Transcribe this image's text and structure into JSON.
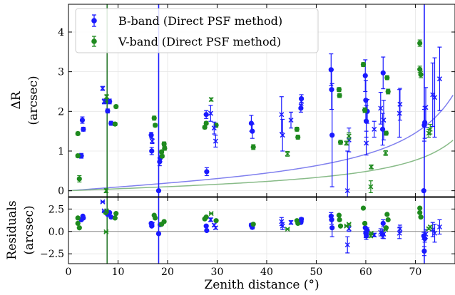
{
  "chart_data": {
    "type": "scatter",
    "xlabel": "Zenith distance (°)",
    "xlim": [
      0,
      78
    ],
    "xticks": [
      0,
      10,
      20,
      30,
      40,
      50,
      60,
      70
    ],
    "panels": [
      {
        "id": "top",
        "ylabel_lines": [
          "ΔR",
          "(arcsec)"
        ],
        "ylim": [
          -0.15,
          4.7
        ],
        "yticks": [
          0,
          1,
          2,
          3,
          4
        ],
        "grid": true,
        "legend_placement": "top-left"
      },
      {
        "id": "bottom",
        "ylabel_lines": [
          "Residuals",
          "(arcsec)"
        ],
        "ylim": [
          -3.6,
          3.8
        ],
        "yticks": [
          -2.5,
          0.0,
          2.5
        ],
        "ytick_labels": [
          "−2.5",
          "0.0",
          "2.5"
        ],
        "grid": true,
        "zero_line": true
      }
    ],
    "vlines": [
      {
        "x": 7.8,
        "color": "#2e7d32"
      },
      {
        "x": 18.2,
        "color": "#1a1aff"
      },
      {
        "x": 71.8,
        "color": "#1a1aff"
      }
    ],
    "curves": [
      {
        "color": "#8080ee",
        "k": 0.53
      },
      {
        "color": "#88bb88",
        "k": 0.28
      }
    ],
    "series": [
      {
        "name": "B-band (Direct PSF method)",
        "color": "#1a1aff",
        "marker": "circle",
        "points": [
          [
            2.6,
            0.88,
            0.06
          ],
          [
            2.8,
            1.78,
            0.08
          ],
          [
            3.0,
            1.55,
            0.05
          ],
          [
            7.9,
            2.01,
            0.05
          ],
          [
            8.3,
            2.25,
            0.06
          ],
          [
            8.6,
            1.7,
            0.05
          ],
          [
            16.7,
            1.4,
            0.07
          ],
          [
            16.8,
            1.0,
            0.09
          ],
          [
            18.2,
            0.0,
            0.0
          ],
          [
            18.4,
            0.73,
            0.1
          ],
          [
            18.5,
            0.82,
            0.08
          ],
          [
            27.8,
            1.92,
            0.1
          ],
          [
            27.9,
            0.48,
            0.1
          ],
          [
            36.9,
            1.7,
            0.2
          ],
          [
            37.1,
            1.5,
            0.18
          ],
          [
            46.9,
            2.08,
            0.1
          ],
          [
            47.0,
            2.32,
            0.1
          ],
          [
            53.0,
            3.05,
            0.4
          ],
          [
            53.1,
            2.55,
            0.5
          ],
          [
            53.2,
            1.4,
            1.3
          ],
          [
            59.9,
            2.9,
            0.4
          ],
          [
            60.0,
            2.28,
            0.5
          ],
          [
            60.1,
            1.75,
            0.4
          ],
          [
            60.3,
            2.0,
            0.3
          ],
          [
            63.4,
            1.55,
            0.4
          ],
          [
            63.5,
            2.97,
            0.4
          ],
          [
            71.7,
            0.0,
            0.0
          ],
          [
            71.8,
            1.65,
            0.4
          ],
          [
            71.9,
            1.72,
            0.4
          ]
        ]
      },
      {
        "name": "V-band (Direct PSF method)",
        "color": "#1e8a1e",
        "marker": "circle",
        "points": [
          [
            1.9,
            1.44,
            0.04
          ],
          [
            1.9,
            0.88,
            0.04
          ],
          [
            2.2,
            0.3,
            0.08
          ],
          [
            7.5,
            2.25,
            0.05
          ],
          [
            9.6,
            2.12,
            0.04
          ],
          [
            9.4,
            1.68,
            0.04
          ],
          [
            17.3,
            1.83,
            0.05
          ],
          [
            17.5,
            1.65,
            0.04
          ],
          [
            18.8,
            0.98,
            0.04
          ],
          [
            19.3,
            1.18,
            0.05
          ],
          [
            19.4,
            1.07,
            0.05
          ],
          [
            18.9,
            0.87,
            0.04
          ],
          [
            27.5,
            1.6,
            0.04
          ],
          [
            27.8,
            1.7,
            0.04
          ],
          [
            29.8,
            1.65,
            0.05
          ],
          [
            37.3,
            1.1,
            0.06
          ],
          [
            46.1,
            1.55,
            0.05
          ],
          [
            46.3,
            1.35,
            0.05
          ],
          [
            54.6,
            2.55,
            0.05
          ],
          [
            54.7,
            2.4,
            0.05
          ],
          [
            54.9,
            1.22,
            0.05
          ],
          [
            59.5,
            3.18,
            0.05
          ],
          [
            59.8,
            2.03,
            0.06
          ],
          [
            64.3,
            2.85,
            0.05
          ],
          [
            64.5,
            2.5,
            0.06
          ],
          [
            64.1,
            1.45,
            0.05
          ],
          [
            70.9,
            3.72,
            0.08
          ],
          [
            70.9,
            3.06,
            0.08
          ],
          [
            71.1,
            2.93,
            0.08
          ]
        ]
      },
      {
        "name": "",
        "color": "#1a1aff",
        "marker": "x",
        "points": [
          [
            6.9,
            2.58,
            0.05
          ],
          [
            7.2,
            2.25,
            0.06
          ],
          [
            16.9,
            1.25,
            0.06
          ],
          [
            28.7,
            1.95,
            0.2
          ],
          [
            29.4,
            1.58,
            0.15
          ],
          [
            29.7,
            1.25,
            0.15
          ],
          [
            43.0,
            1.92,
            0.45
          ],
          [
            43.2,
            1.4,
            0.4
          ],
          [
            44.9,
            1.78,
            0.2
          ],
          [
            47.0,
            2.25,
            0.1
          ],
          [
            56.3,
            0.0,
            1.0
          ],
          [
            56.6,
            1.28,
            0.3
          ],
          [
            60.1,
            1.2,
            0.3
          ],
          [
            61.7,
            1.55,
            0.2
          ],
          [
            63.0,
            2.08,
            0.4
          ],
          [
            63.6,
            1.78,
            0.5
          ],
          [
            66.8,
            1.95,
            0.6
          ],
          [
            66.9,
            2.18,
            0.4
          ],
          [
            72.1,
            2.1,
            0.5
          ],
          [
            73.5,
            2.42,
            0.8
          ],
          [
            73.9,
            2.35,
            1.0
          ],
          [
            74.9,
            2.82,
            0.8
          ]
        ]
      },
      {
        "name": "",
        "color": "#1e8a1e",
        "marker": "x",
        "points": [
          [
            7.6,
            0.0,
            0.05
          ],
          [
            7.7,
            2.37,
            0.05
          ],
          [
            28.8,
            2.3,
            0.04
          ],
          [
            44.2,
            0.93,
            0.06
          ],
          [
            56.1,
            1.2,
            0.05
          ],
          [
            56.6,
            1.38,
            0.08
          ],
          [
            61.1,
            0.6,
            0.05
          ],
          [
            61.0,
            0.1,
            0.15
          ],
          [
            64.0,
            0.95,
            0.06
          ],
          [
            72.7,
            1.45,
            0.1
          ],
          [
            73.0,
            1.55,
            0.12
          ]
        ]
      }
    ],
    "residuals": [
      {
        "color": "#1a1aff",
        "marker": "circle",
        "points": [
          [
            2.6,
            1.3,
            0.06
          ],
          [
            2.9,
            1.7,
            0.08
          ],
          [
            3.0,
            1.5,
            0.05
          ],
          [
            7.9,
            1.9,
            0.05
          ],
          [
            8.3,
            2.1,
            0.06
          ],
          [
            8.6,
            1.6,
            0.05
          ],
          [
            16.7,
            0.9,
            0.07
          ],
          [
            16.8,
            0.6,
            0.09
          ],
          [
            18.2,
            -0.25,
            0.1
          ],
          [
            18.5,
            0.75,
            0.08
          ],
          [
            27.8,
            0.6,
            0.1
          ],
          [
            27.9,
            0.1,
            0.1
          ],
          [
            36.9,
            0.7,
            0.2
          ],
          [
            37.1,
            0.45,
            0.18
          ],
          [
            46.9,
            1.0,
            0.1
          ],
          [
            47.0,
            1.35,
            0.1
          ],
          [
            53.0,
            1.7,
            0.4
          ],
          [
            53.1,
            1.3,
            0.5
          ],
          [
            53.2,
            0.4,
            1.0
          ],
          [
            59.9,
            0.4,
            0.4
          ],
          [
            60.0,
            -0.2,
            0.5
          ],
          [
            60.1,
            -0.5,
            0.4
          ],
          [
            60.3,
            0.1,
            0.3
          ],
          [
            63.4,
            -0.35,
            0.4
          ],
          [
            63.5,
            0.9,
            0.4
          ],
          [
            71.7,
            -0.5,
            0.4
          ],
          [
            71.8,
            -2.2,
            0.5
          ],
          [
            71.9,
            -0.8,
            0.4
          ]
        ]
      },
      {
        "color": "#1e8a1e",
        "marker": "circle",
        "points": [
          [
            1.9,
            1.5,
            0.04
          ],
          [
            1.9,
            0.9,
            0.04
          ],
          [
            2.2,
            0.4,
            0.08
          ],
          [
            7.5,
            2.1,
            0.05
          ],
          [
            9.6,
            2.0,
            0.04
          ],
          [
            9.4,
            1.5,
            0.04
          ],
          [
            17.3,
            1.8,
            0.05
          ],
          [
            17.5,
            1.5,
            0.04
          ],
          [
            18.8,
            0.8,
            0.04
          ],
          [
            19.3,
            1.1,
            0.05
          ],
          [
            27.5,
            1.4,
            0.04
          ],
          [
            27.8,
            1.6,
            0.04
          ],
          [
            29.8,
            1.2,
            0.05
          ],
          [
            37.3,
            0.8,
            0.06
          ],
          [
            46.1,
            1.2,
            0.05
          ],
          [
            46.3,
            0.9,
            0.05
          ],
          [
            54.6,
            1.8,
            0.05
          ],
          [
            54.7,
            1.3,
            0.05
          ],
          [
            54.9,
            0.6,
            0.05
          ],
          [
            59.5,
            2.6,
            0.05
          ],
          [
            59.8,
            0.9,
            0.06
          ],
          [
            64.3,
            1.9,
            0.05
          ],
          [
            64.5,
            1.3,
            0.06
          ],
          [
            64.1,
            0.4,
            0.05
          ],
          [
            70.9,
            2.6,
            0.08
          ],
          [
            70.9,
            2.1,
            0.08
          ],
          [
            71.1,
            1.6,
            0.08
          ]
        ]
      },
      {
        "color": "#1a1aff",
        "marker": "x",
        "points": [
          [
            6.9,
            3.3,
            0.05
          ],
          [
            7.2,
            2.3,
            0.06
          ],
          [
            16.9,
            0.8,
            0.06
          ],
          [
            28.7,
            1.3,
            0.2
          ],
          [
            29.4,
            0.7,
            0.15
          ],
          [
            29.7,
            0.4,
            0.15
          ],
          [
            43.0,
            1.1,
            0.45
          ],
          [
            43.2,
            0.6,
            0.4
          ],
          [
            44.9,
            1.0,
            0.2
          ],
          [
            47.0,
            1.3,
            0.1
          ],
          [
            56.3,
            -1.5,
            0.9
          ],
          [
            56.6,
            0.3,
            0.3
          ],
          [
            60.1,
            -0.2,
            0.3
          ],
          [
            61.7,
            -0.4,
            0.2
          ],
          [
            63.0,
            -0.1,
            0.4
          ],
          [
            63.6,
            -0.3,
            0.5
          ],
          [
            66.8,
            -0.2,
            0.6
          ],
          [
            66.9,
            0.3,
            0.4
          ],
          [
            72.1,
            -0.3,
            0.5
          ],
          [
            73.5,
            0.2,
            0.8
          ],
          [
            73.9,
            -0.2,
            1.0
          ],
          [
            74.9,
            0.5,
            0.8
          ]
        ]
      },
      {
        "color": "#1e8a1e",
        "marker": "x",
        "points": [
          [
            7.6,
            -0.05,
            0.05
          ],
          [
            7.7,
            2.3,
            0.05
          ],
          [
            28.8,
            2.0,
            0.04
          ],
          [
            44.2,
            0.25,
            0.06
          ],
          [
            56.1,
            0.6,
            0.05
          ],
          [
            56.6,
            0.8,
            0.08
          ],
          [
            61.1,
            -0.2,
            0.05
          ],
          [
            61.0,
            -0.5,
            0.15
          ],
          [
            64.0,
            0.2,
            0.06
          ],
          [
            72.7,
            0.3,
            0.1
          ],
          [
            73.0,
            0.5,
            0.12
          ]
        ]
      }
    ]
  }
}
